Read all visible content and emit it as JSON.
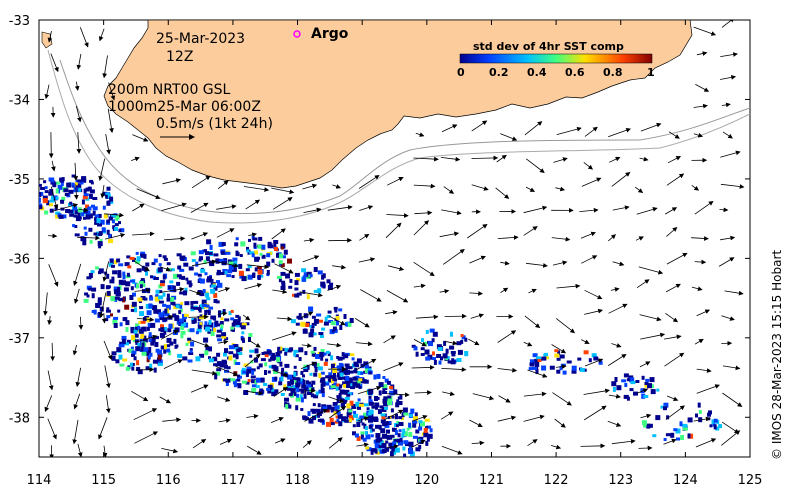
{
  "map": {
    "date": "25-Mar-2023",
    "hour": "12Z",
    "argo_label": "Argo",
    "isobaths": "200m  NRT00 GSL",
    "analysis": "1000m25-Mar 06:00Z",
    "vector_scale": "0.5m/s (1kt 24h)",
    "credit": "© IMOS 28-Mar-2023 15:15 Hobart",
    "land_color": "#fccc9c",
    "argo_color": "#ff00ff"
  },
  "axes": {
    "x_ticks": [
      "114",
      "115",
      "116",
      "117",
      "118",
      "119",
      "120",
      "121",
      "122",
      "123",
      "124",
      "125"
    ],
    "y_ticks": [
      "-33",
      "-34",
      "-35",
      "-36",
      "-37",
      "-38"
    ],
    "x_range": [
      114,
      125
    ],
    "y_range": [
      -38.5,
      -33
    ]
  },
  "colorbar": {
    "title": "std dev of 4hr SST comp",
    "ticks": [
      "0",
      "0.2",
      "0.4",
      "0.6",
      "0.8",
      "1"
    ],
    "colors": [
      "#00008f",
      "#0040ff",
      "#00c0ff",
      "#40ff80",
      "#ffe000",
      "#ff4000",
      "#800000"
    ]
  }
}
